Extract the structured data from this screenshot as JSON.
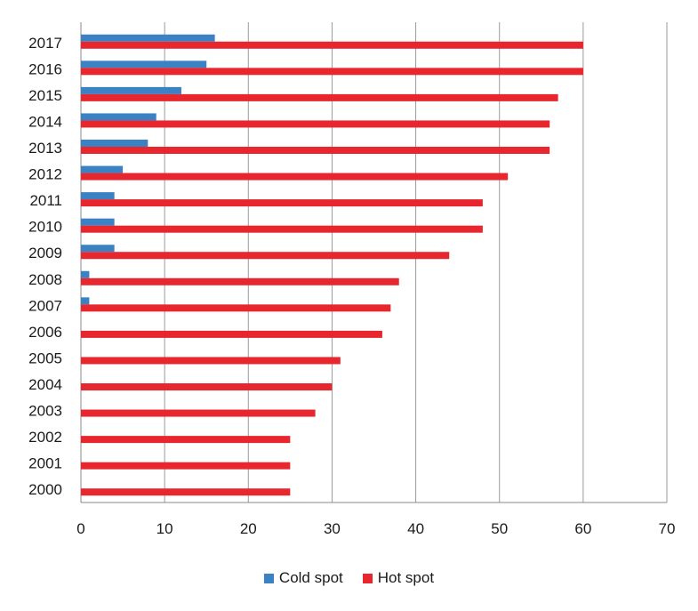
{
  "chart_data": {
    "type": "bar",
    "orientation": "horizontal",
    "title": "",
    "xlabel": "",
    "ylabel": "",
    "xlim": [
      0,
      70
    ],
    "x_ticks": [
      "0",
      "10",
      "20",
      "30",
      "40",
      "50",
      "60",
      "70"
    ],
    "grid": "vertical",
    "legend_position": "bottom",
    "categories": [
      "2000",
      "2001",
      "2002",
      "2003",
      "2004",
      "2005",
      "2006",
      "2007",
      "2008",
      "2009",
      "2010",
      "2011",
      "2012",
      "2013",
      "2014",
      "2015",
      "2016",
      "2017"
    ],
    "series": [
      {
        "name": "Cold spot",
        "color": "#3a82c4",
        "values": [
          0,
          0,
          0,
          0,
          0,
          0,
          0,
          1,
          1,
          4,
          4,
          4,
          5,
          8,
          9,
          12,
          15,
          16
        ]
      },
      {
        "name": "Hot spot",
        "color": "#e8262d",
        "values": [
          25,
          25,
          25,
          28,
          30,
          31,
          36,
          37,
          38,
          44,
          48,
          48,
          51,
          56,
          56,
          57,
          60,
          60
        ]
      }
    ]
  }
}
